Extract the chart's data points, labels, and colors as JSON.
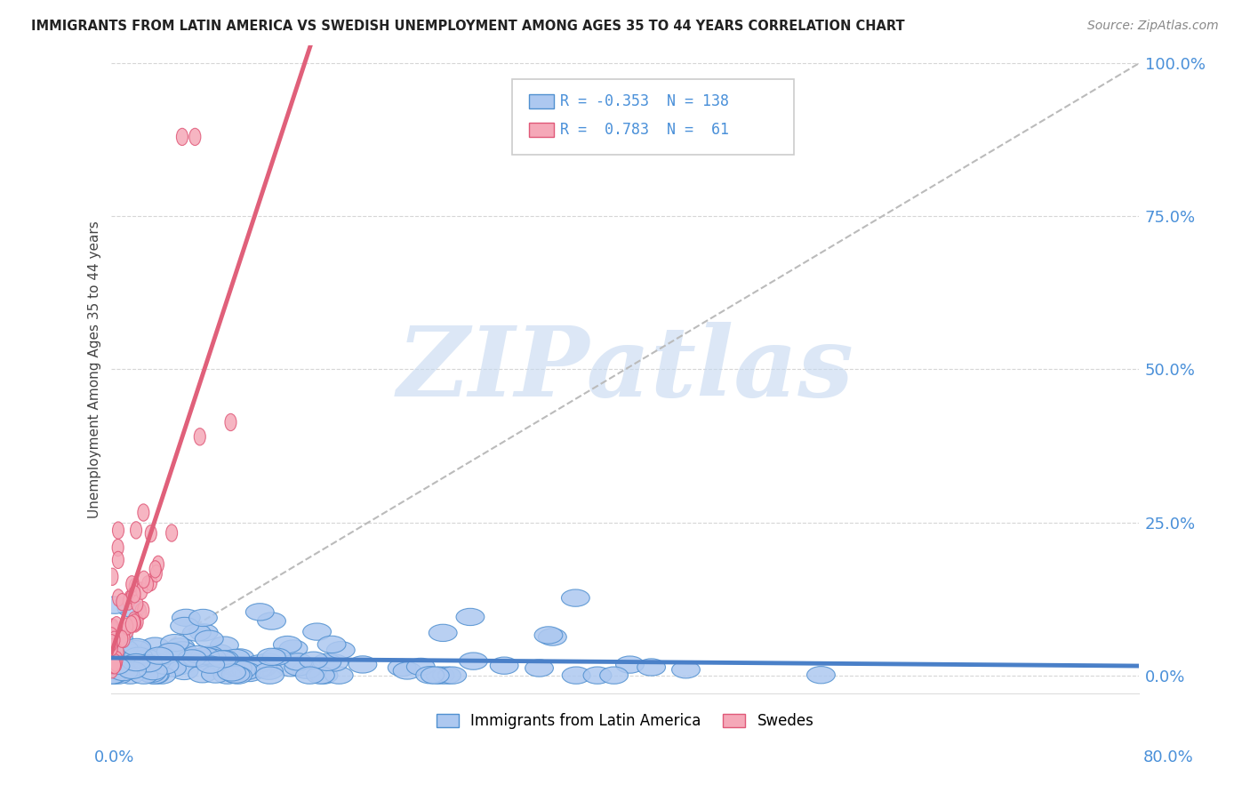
{
  "title": "IMMIGRANTS FROM LATIN AMERICA VS SWEDISH UNEMPLOYMENT AMONG AGES 35 TO 44 YEARS CORRELATION CHART",
  "source": "Source: ZipAtlas.com",
  "ylabel": "Unemployment Among Ages 35 to 44 years",
  "legend1_label": "Immigrants from Latin America",
  "legend1_R": "-0.353",
  "legend1_N": "138",
  "legend2_label": "Swedes",
  "legend2_R": "0.783",
  "legend2_N": "61",
  "blue_fill": "#adc8f0",
  "blue_edge": "#5090d0",
  "pink_fill": "#f5a8b8",
  "pink_edge": "#e05878",
  "pink_line": "#e0607a",
  "blue_line": "#4a80c8",
  "grey_line": "#bbbbbb",
  "R_blue": -0.353,
  "N_blue": 138,
  "R_pink": 0.783,
  "N_pink": 61,
  "xlim": [
    0.0,
    0.8
  ],
  "ylim_min": -0.03,
  "ylim_max": 1.03,
  "ytick_vals": [
    0.0,
    0.25,
    0.5,
    0.75,
    1.0
  ],
  "ytick_labels": [
    "0.0%",
    "25.0%",
    "50.0%",
    "75.0%",
    "100.0%"
  ],
  "watermark_color": "#c5d8f0",
  "background": "#ffffff",
  "grid_color": "#cccccc",
  "title_color": "#222222",
  "source_color": "#888888",
  "axis_label_color": "#444444",
  "tick_color": "#4a90d9",
  "legend_text_color": "#4a90d9",
  "legend_r_color": "#e05878"
}
